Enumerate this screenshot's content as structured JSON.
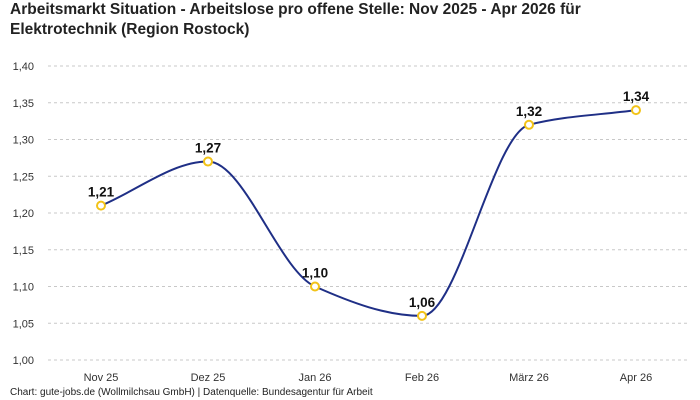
{
  "chart_data": {
    "type": "line",
    "title": "Arbeitsmarkt Situation - Arbeitslose pro offene Stelle: Nov 2025 - Apr 2026 für Elektrotechnik (Region Rostock)",
    "categories": [
      "Nov 25",
      "Dez 25",
      "Jan 26",
      "Feb 26",
      "März 26",
      "Apr 26"
    ],
    "values": [
      1.21,
      1.27,
      1.1,
      1.06,
      1.32,
      1.34
    ],
    "data_labels": [
      "1,21",
      "1,27",
      "1,10",
      "1,06",
      "1,32",
      "1,34"
    ],
    "y_ticks": [
      1.0,
      1.05,
      1.1,
      1.15,
      1.2,
      1.25,
      1.3,
      1.35,
      1.4
    ],
    "y_tick_labels": [
      "1,00",
      "1,05",
      "1,10",
      "1,15",
      "1,20",
      "1,25",
      "1,30",
      "1,35",
      "1,40"
    ],
    "ylim": [
      1.0,
      1.4
    ],
    "xlabel": "",
    "ylabel": "",
    "grid": "horizontal-dashed",
    "legend": "none",
    "line_color": "#1f2f86",
    "marker_color": "#f2c318",
    "footer": "Chart: gute-jobs.de (Wollmilchsau GmbH) | Datenquelle: Bundesagentur für Arbeit"
  }
}
